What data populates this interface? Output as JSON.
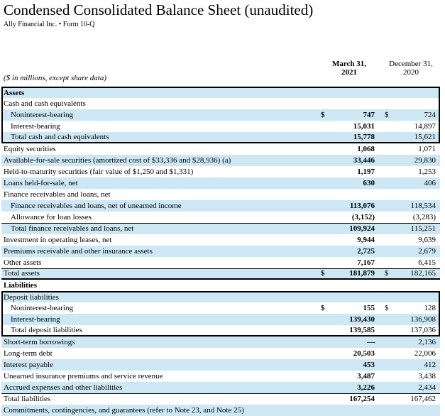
{
  "page": {
    "title": "Condensed Consolidated Balance Sheet (unaudited)",
    "subtitle": "Ally Financial Inc. • Form 10-Q"
  },
  "colors": {
    "row_shade": "#cde7f5",
    "annotation_box": "#000000"
  },
  "table": {
    "caption": "($ in millions, except share data)",
    "col_headers": [
      {
        "line1": "March 31,",
        "line2": "2021"
      },
      {
        "line1": "December 31,",
        "line2": "2020"
      }
    ],
    "rows": [
      {
        "label": "Assets",
        "indent": 0,
        "section": true,
        "shaded": true,
        "dollar": false,
        "v2021": "",
        "v2020": "",
        "box": "start"
      },
      {
        "label": "Cash and cash equivalents",
        "indent": 0,
        "section": false,
        "shaded": false,
        "dollar": false,
        "v2021": "",
        "v2020": "",
        "box": "mid"
      },
      {
        "label": "Noninterest-bearing",
        "indent": 1,
        "section": false,
        "shaded": true,
        "dollar": true,
        "v2021": "747",
        "v2020": "724",
        "box": "mid"
      },
      {
        "label": "Interest-bearing",
        "indent": 1,
        "section": false,
        "shaded": false,
        "dollar": false,
        "v2021": "15,031",
        "v2020": "14,897",
        "box": "mid"
      },
      {
        "label": "Total cash and cash equivalents",
        "indent": 1,
        "section": false,
        "shaded": true,
        "dollar": false,
        "v2021": "15,778",
        "v2020": "15,621",
        "box": "end",
        "border_top": true
      },
      {
        "label": "Equity securities",
        "indent": 0,
        "section": false,
        "shaded": false,
        "dollar": false,
        "v2021": "1,068",
        "v2020": "1,071"
      },
      {
        "label": "Available-for-sale securities (amortized cost of $33,336 and $28,936) (a)",
        "indent": 0,
        "section": false,
        "shaded": true,
        "dollar": false,
        "v2021": "33,446",
        "v2020": "29,830"
      },
      {
        "label": "Held-to-maturity securities (fair value of $1,250 and $1,331)",
        "indent": 0,
        "section": false,
        "shaded": false,
        "dollar": false,
        "v2021": "1,197",
        "v2020": "1,253"
      },
      {
        "label": "Loans held-for-sale, net",
        "indent": 0,
        "section": false,
        "shaded": true,
        "dollar": false,
        "v2021": "630",
        "v2020": "406"
      },
      {
        "label": "Finance receivables and loans, net",
        "indent": 0,
        "section": false,
        "shaded": false,
        "dollar": false,
        "v2021": "",
        "v2020": ""
      },
      {
        "label": "Finance receivables and loans, net of unearned income",
        "indent": 1,
        "section": false,
        "shaded": true,
        "dollar": false,
        "v2021": "113,076",
        "v2020": "118,534"
      },
      {
        "label": "Allowance for loan losses",
        "indent": 1,
        "section": false,
        "shaded": false,
        "dollar": false,
        "v2021": "(3,152)",
        "v2020": "(3,283)"
      },
      {
        "label": "Total finance receivables and loans, net",
        "indent": 1,
        "section": false,
        "shaded": true,
        "dollar": false,
        "v2021": "109,924",
        "v2020": "115,251",
        "border_top": true
      },
      {
        "label": "Investment in operating leases, net",
        "indent": 0,
        "section": false,
        "shaded": false,
        "dollar": false,
        "v2021": "9,944",
        "v2020": "9,639"
      },
      {
        "label": "Premiums receivable and other insurance assets",
        "indent": 0,
        "section": false,
        "shaded": true,
        "dollar": false,
        "v2021": "2,725",
        "v2020": "2,679"
      },
      {
        "label": "Other assets",
        "indent": 0,
        "section": false,
        "shaded": false,
        "dollar": false,
        "v2021": "7,167",
        "v2020": "6,415"
      },
      {
        "label": "Total assets",
        "indent": 0,
        "section": false,
        "shaded": true,
        "dollar": true,
        "v2021": "181,879",
        "v2020": "182,165",
        "border_top": true,
        "border_bottom_thick": true
      },
      {
        "label": "Liabilities",
        "indent": 0,
        "section": true,
        "shaded": false,
        "dollar": false,
        "v2021": "",
        "v2020": ""
      },
      {
        "label": "Deposit liabilities",
        "indent": 0,
        "section": false,
        "shaded": true,
        "dollar": false,
        "v2021": "",
        "v2020": "",
        "box": "start"
      },
      {
        "label": "Noninterest-bearing",
        "indent": 1,
        "section": false,
        "shaded": false,
        "dollar": true,
        "v2021": "155",
        "v2020": "128",
        "box": "mid"
      },
      {
        "label": "Interest-bearing",
        "indent": 1,
        "section": false,
        "shaded": true,
        "dollar": false,
        "v2021": "139,430",
        "v2020": "136,908",
        "box": "mid"
      },
      {
        "label": "Total deposit liabilities",
        "indent": 1,
        "section": false,
        "shaded": false,
        "dollar": false,
        "v2021": "139,585",
        "v2020": "137,036",
        "box": "end",
        "border_top": true
      },
      {
        "label": "Short-term borrowings",
        "indent": 0,
        "section": false,
        "shaded": true,
        "dollar": false,
        "v2021": "—",
        "v2020": "2,136"
      },
      {
        "label": "Long-term debt",
        "indent": 0,
        "section": false,
        "shaded": false,
        "dollar": false,
        "v2021": "20,503",
        "v2020": "22,006"
      },
      {
        "label": "Interest payable",
        "indent": 0,
        "section": false,
        "shaded": true,
        "dollar": false,
        "v2021": "453",
        "v2020": "412"
      },
      {
        "label": "Unearned insurance premiums and service revenue",
        "indent": 0,
        "section": false,
        "shaded": false,
        "dollar": false,
        "v2021": "3,487",
        "v2020": "3,438"
      },
      {
        "label": "Accrued expenses and other liabilities",
        "indent": 0,
        "section": false,
        "shaded": true,
        "dollar": false,
        "v2021": "3,226",
        "v2020": "2,434"
      },
      {
        "label": "Total liabilities",
        "indent": 0,
        "section": false,
        "shaded": false,
        "dollar": false,
        "v2021": "167,254",
        "v2020": "167,462",
        "border_top": true
      },
      {
        "label": "Commitments, contingencies, and guarantees (refer to Note 23, and Note 25)",
        "indent": 0,
        "section": false,
        "shaded": true,
        "dollar": false,
        "v2021": "",
        "v2020": "",
        "clipped": true
      }
    ]
  }
}
